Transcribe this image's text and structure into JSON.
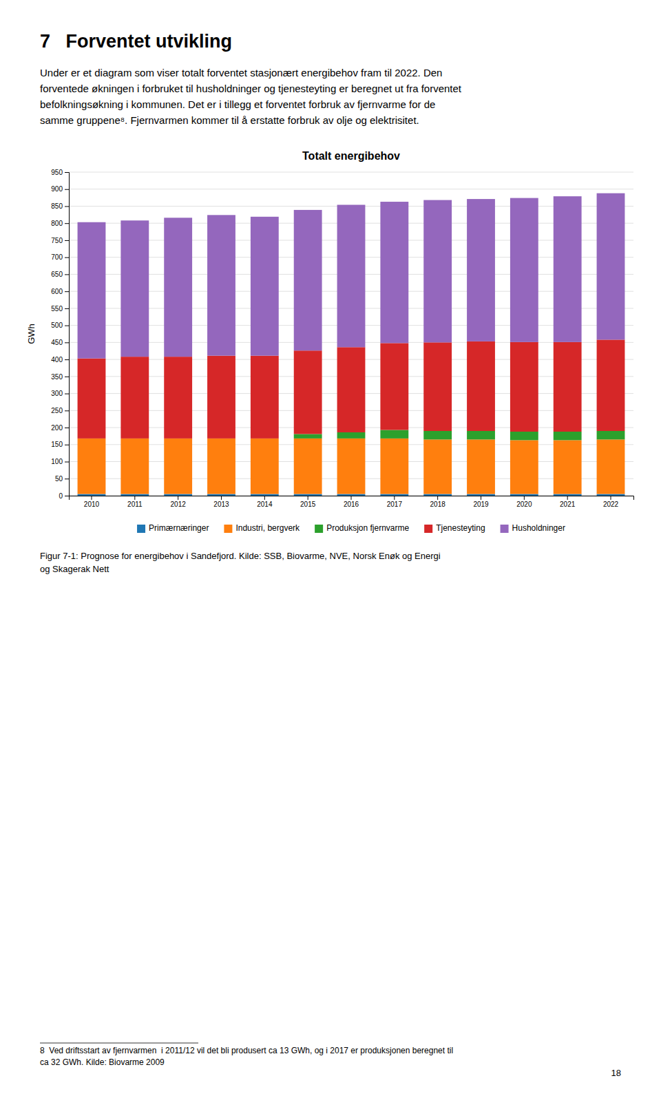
{
  "page_title": "7   Forventet utvikling",
  "intro_text": "Under er et diagram som viser totalt forventet stasjonært energibehov fram til 2022. Den\nforventede økningen i forbruket til husholdninger og tjenesteyting er beregnet ut fra forventet\nbefolkningsøkning i kommunen. Det er i tillegg et forventet forbruk av fjernvarme for de\nsamme gruppene⁸. Fjernvarmen kommer til å erstatte forbruk av olje og elektrisitet.",
  "caption": "Figur 7-1: Prognose for energibehov i Sandefjord. Kilde: SSB, Biovarme, NVE, Norsk Enøk og Energi\nog Skagerak Nett",
  "footnote": "8  Ved driftsstart av fjernvarmen  i 2011/12 vil det bli produsert ca 13 GWh, og i 2017 er produksjonen beregnet til\nca 32 GWh. Kilde: Biovarme 2009",
  "page_number": "18",
  "chart_data": {
    "type": "bar",
    "stacked": true,
    "title": "Totalt energibehov",
    "ylabel": "GWh",
    "categories": [
      "2010",
      "2011",
      "2012",
      "2013",
      "2014",
      "2015",
      "2016",
      "2017",
      "2018",
      "2019",
      "2020",
      "2021",
      "2022"
    ],
    "series": [
      {
        "name": "Primærnæringer",
        "values": [
          5,
          5,
          5,
          5,
          5,
          5,
          5,
          5,
          5,
          5,
          5,
          5,
          5
        ]
      },
      {
        "name": "Industri, bergverk",
        "values": [
          163,
          163,
          163,
          163,
          163,
          163,
          163,
          163,
          160,
          160,
          158,
          158,
          160
        ]
      },
      {
        "name": "Produksjon fjernvarme",
        "values": [
          0,
          0,
          0,
          0,
          0,
          13,
          18,
          25,
          25,
          25,
          25,
          25,
          25
        ]
      },
      {
        "name": "Tjenesteyting",
        "values": [
          235,
          240,
          240,
          243,
          243,
          245,
          250,
          255,
          260,
          263,
          263,
          263,
          268
        ]
      },
      {
        "name": "Husholdninger",
        "values": [
          400,
          400,
          408,
          413,
          408,
          413,
          418,
          415,
          418,
          418,
          423,
          428,
          430
        ]
      }
    ],
    "ylim": [
      0,
      950
    ],
    "yticks": [
      0,
      50,
      100,
      150,
      200,
      250,
      300,
      350,
      400,
      450,
      500,
      550,
      600,
      650,
      700,
      750,
      800,
      850,
      900,
      950
    ],
    "grid": true,
    "legend": "bottom"
  }
}
